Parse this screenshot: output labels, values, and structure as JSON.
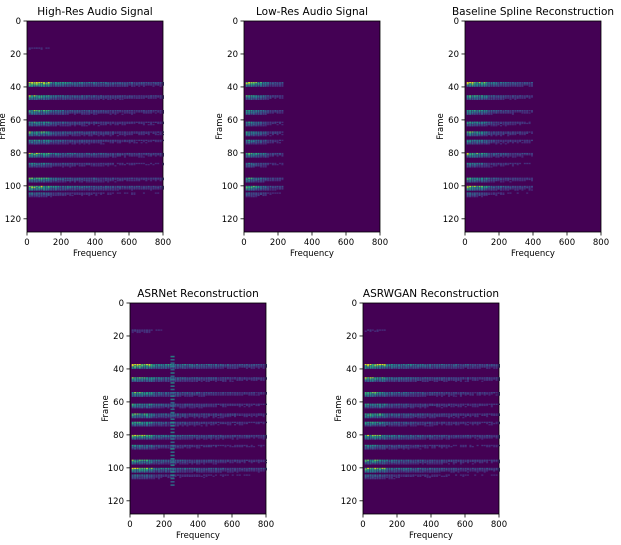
{
  "colors": {
    "background": "#440154",
    "axis": "#000000",
    "title_text": "#000000"
  },
  "chart_data": [
    {
      "type": "heatmap",
      "title": "High-Res Audio Signal",
      "xlabel": "Frequency",
      "ylabel": "Frame",
      "xlim": [
        0,
        800
      ],
      "ylim": [
        128,
        0
      ],
      "xticks": [
        0,
        200,
        400,
        600,
        800
      ],
      "yticks": [
        0,
        20,
        40,
        60,
        80,
        100,
        120
      ],
      "colormap": "viridis",
      "max_frequency_content": 800,
      "frame_bursts": [
        {
          "frame": 17,
          "intensity": 0.15
        },
        {
          "frame": 38,
          "intensity": 1.0
        },
        {
          "frame": 46,
          "intensity": 0.75
        },
        {
          "frame": 55,
          "intensity": 0.7
        },
        {
          "frame": 62,
          "intensity": 0.6
        },
        {
          "frame": 68,
          "intensity": 0.7
        },
        {
          "frame": 73,
          "intensity": 0.6
        },
        {
          "frame": 81,
          "intensity": 0.8
        },
        {
          "frame": 87,
          "intensity": 0.5
        },
        {
          "frame": 96,
          "intensity": 0.7
        },
        {
          "frame": 101,
          "intensity": 0.85
        },
        {
          "frame": 105,
          "intensity": 0.4
        }
      ]
    },
    {
      "type": "heatmap",
      "title": "Low-Res Audio Signal",
      "xlabel": "Frequency",
      "ylabel": "Frame",
      "xlim": [
        0,
        800
      ],
      "ylim": [
        128,
        0
      ],
      "xticks": [
        0,
        200,
        400,
        600,
        800
      ],
      "yticks": [
        0,
        20,
        40,
        60,
        80,
        100,
        120
      ],
      "colormap": "viridis",
      "max_frequency_content": 230,
      "frame_bursts": [
        {
          "frame": 38,
          "intensity": 1.0
        },
        {
          "frame": 46,
          "intensity": 0.75
        },
        {
          "frame": 55,
          "intensity": 0.7
        },
        {
          "frame": 62,
          "intensity": 0.6
        },
        {
          "frame": 68,
          "intensity": 0.7
        },
        {
          "frame": 73,
          "intensity": 0.6
        },
        {
          "frame": 81,
          "intensity": 0.8
        },
        {
          "frame": 87,
          "intensity": 0.5
        },
        {
          "frame": 96,
          "intensity": 0.7
        },
        {
          "frame": 101,
          "intensity": 0.85
        },
        {
          "frame": 105,
          "intensity": 0.4
        }
      ]
    },
    {
      "type": "heatmap",
      "title": "Baseline Spline Reconstruction",
      "xlabel": "Frequency",
      "ylabel": "Frame",
      "xlim": [
        0,
        800
      ],
      "ylim": [
        128,
        0
      ],
      "xticks": [
        0,
        200,
        400,
        600,
        800
      ],
      "yticks": [
        0,
        20,
        40,
        60,
        80,
        100,
        120
      ],
      "colormap": "viridis",
      "max_frequency_content": 400,
      "frame_bursts": [
        {
          "frame": 17,
          "intensity": 0.1
        },
        {
          "frame": 38,
          "intensity": 1.0
        },
        {
          "frame": 46,
          "intensity": 0.75
        },
        {
          "frame": 55,
          "intensity": 0.7
        },
        {
          "frame": 62,
          "intensity": 0.6
        },
        {
          "frame": 68,
          "intensity": 0.7
        },
        {
          "frame": 73,
          "intensity": 0.6
        },
        {
          "frame": 81,
          "intensity": 0.8
        },
        {
          "frame": 87,
          "intensity": 0.5
        },
        {
          "frame": 96,
          "intensity": 0.7
        },
        {
          "frame": 101,
          "intensity": 0.85
        },
        {
          "frame": 105,
          "intensity": 0.4
        }
      ]
    },
    {
      "type": "heatmap",
      "title": "ASRNet Reconstruction",
      "xlabel": "Frequency",
      "ylabel": "Frame",
      "xlim": [
        0,
        800
      ],
      "ylim": [
        128,
        0
      ],
      "xticks": [
        0,
        200,
        400,
        600,
        800
      ],
      "yticks": [
        0,
        20,
        40,
        60,
        80,
        100,
        120
      ],
      "colormap": "viridis",
      "max_frequency_content": 800,
      "vertical_band_frequency": 250,
      "frame_bursts": [
        {
          "frame": 17,
          "intensity": 0.2
        },
        {
          "frame": 38,
          "intensity": 1.0
        },
        {
          "frame": 46,
          "intensity": 0.75
        },
        {
          "frame": 55,
          "intensity": 0.7
        },
        {
          "frame": 62,
          "intensity": 0.6
        },
        {
          "frame": 68,
          "intensity": 0.7
        },
        {
          "frame": 73,
          "intensity": 0.6
        },
        {
          "frame": 81,
          "intensity": 0.8
        },
        {
          "frame": 87,
          "intensity": 0.5
        },
        {
          "frame": 96,
          "intensity": 0.7
        },
        {
          "frame": 101,
          "intensity": 0.85
        },
        {
          "frame": 105,
          "intensity": 0.4
        }
      ]
    },
    {
      "type": "heatmap",
      "title": "ASRWGAN Reconstruction",
      "xlabel": "Frequency",
      "ylabel": "Frame",
      "xlim": [
        0,
        800
      ],
      "ylim": [
        128,
        0
      ],
      "xticks": [
        0,
        200,
        400,
        600,
        800
      ],
      "yticks": [
        0,
        20,
        40,
        60,
        80,
        100,
        120
      ],
      "colormap": "viridis",
      "max_frequency_content": 800,
      "frame_bursts": [
        {
          "frame": 17,
          "intensity": 0.15
        },
        {
          "frame": 38,
          "intensity": 1.0
        },
        {
          "frame": 46,
          "intensity": 0.75
        },
        {
          "frame": 55,
          "intensity": 0.7
        },
        {
          "frame": 62,
          "intensity": 0.6
        },
        {
          "frame": 68,
          "intensity": 0.7
        },
        {
          "frame": 73,
          "intensity": 0.6
        },
        {
          "frame": 81,
          "intensity": 0.8
        },
        {
          "frame": 87,
          "intensity": 0.5
        },
        {
          "frame": 96,
          "intensity": 0.7
        },
        {
          "frame": 101,
          "intensity": 0.85
        },
        {
          "frame": 105,
          "intensity": 0.4
        }
      ]
    }
  ]
}
